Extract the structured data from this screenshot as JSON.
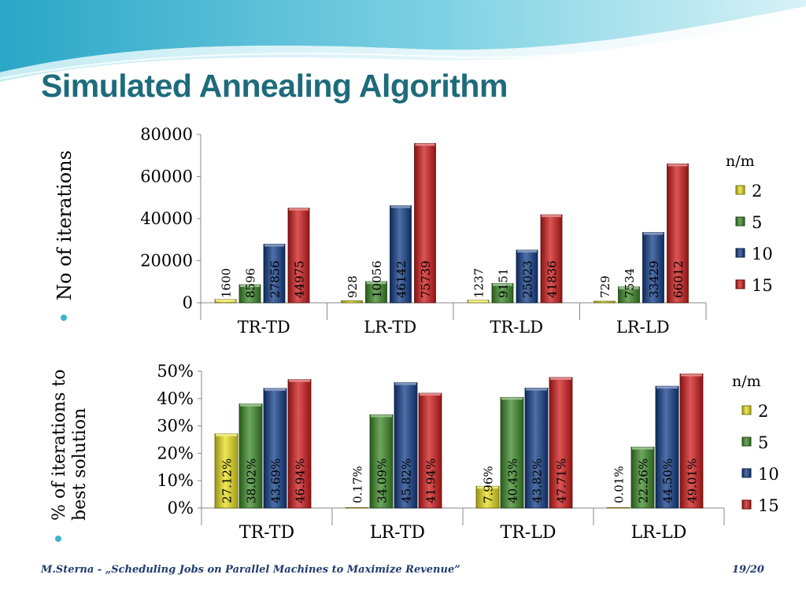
{
  "slide": {
    "title": "Simulated Annealing Algorithm",
    "footer_text": "M.Sterna - „Scheduling Jobs on Parallel Machines to Maximize Revenue”",
    "page_number": "19/20",
    "accent_color": "#1e6b7b"
  },
  "chart_data": [
    {
      "type": "bar",
      "ylabel": "No of iterations",
      "categories": [
        "TR-TD",
        "LR-TD",
        "TR-LD",
        "LR-LD"
      ],
      "legend_title": "n/m",
      "legend_position": "right",
      "ylim": [
        0,
        80000
      ],
      "yticks": [
        0,
        20000,
        40000,
        60000,
        80000
      ],
      "ytick_labels": [
        "0",
        "20000",
        "40000",
        "60000",
        "80000"
      ],
      "grid": false,
      "series": [
        {
          "name": "2",
          "color": "#e8e020",
          "values": [
            1600,
            928,
            1237,
            729
          ],
          "labels": [
            "1600",
            "928",
            "1237",
            "729"
          ]
        },
        {
          "name": "5",
          "color": "#3d8a2a",
          "values": [
            8596,
            10056,
            9151,
            7534
          ],
          "labels": [
            "8596",
            "10056",
            "9151",
            "7534"
          ]
        },
        {
          "name": "10",
          "color": "#143f8a",
          "values": [
            27856,
            46142,
            25023,
            33429
          ],
          "labels": [
            "27856",
            "46142",
            "25023",
            "33429"
          ]
        },
        {
          "name": "15",
          "color": "#d01c1c",
          "values": [
            44975,
            75739,
            41836,
            66012
          ],
          "labels": [
            "44975",
            "75739",
            "41836",
            "66012"
          ]
        }
      ]
    },
    {
      "type": "bar",
      "ylabel": "% of iterations to best solution",
      "categories": [
        "TR-TD",
        "LR-TD",
        "TR-LD",
        "LR-LD"
      ],
      "legend_title": "n/m",
      "legend_position": "right",
      "ylim": [
        0,
        50
      ],
      "yticks": [
        0,
        10,
        20,
        30,
        40,
        50
      ],
      "ytick_labels": [
        "0%",
        "10%",
        "20%",
        "30%",
        "40%",
        "50%"
      ],
      "grid": false,
      "series": [
        {
          "name": "2",
          "color": "#e8e020",
          "values": [
            27.12,
            0.17,
            7.96,
            0.01
          ],
          "labels": [
            "27.12%",
            "0.17%",
            "7.96%",
            "0.01%"
          ]
        },
        {
          "name": "5",
          "color": "#3d8a2a",
          "values": [
            38.02,
            34.09,
            40.43,
            22.26
          ],
          "labels": [
            "38.02%",
            "34.09%",
            "40.43%",
            "22.26%"
          ]
        },
        {
          "name": "10",
          "color": "#143f8a",
          "values": [
            43.69,
            45.82,
            43.82,
            44.5
          ],
          "labels": [
            "43.69%",
            "45.82%",
            "43.82%",
            "44.50%"
          ]
        },
        {
          "name": "15",
          "color": "#d01c1c",
          "values": [
            46.94,
            41.94,
            47.71,
            49.01
          ],
          "labels": [
            "46.94%",
            "41.94%",
            "47.71%",
            "49.01%"
          ]
        }
      ]
    }
  ]
}
